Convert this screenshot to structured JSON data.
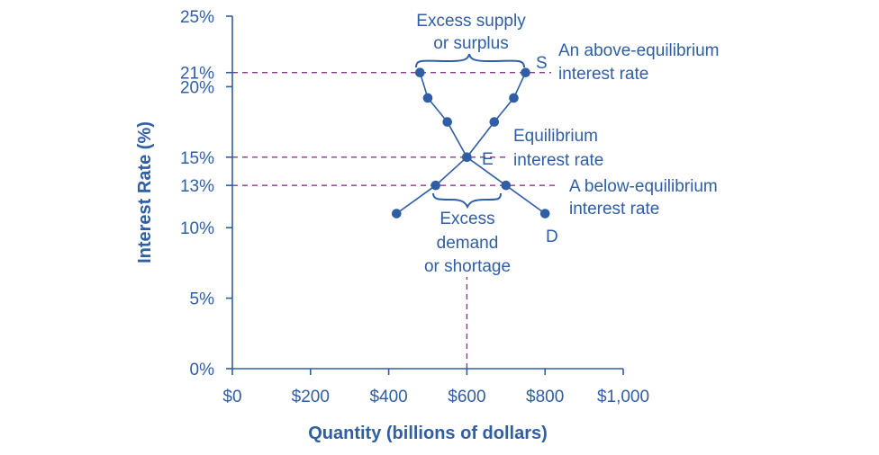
{
  "chart_data": {
    "type": "line",
    "xlabel": "Quantity (billions of dollars)",
    "ylabel": "Interest Rate (%)",
    "xlim": [
      0,
      1000
    ],
    "ylim": [
      0,
      25
    ],
    "x_ticks": [
      0,
      200,
      400,
      600,
      800,
      1000
    ],
    "x_tick_labels": [
      "$0",
      "$200",
      "$400",
      "$600",
      "$800",
      "$1,000"
    ],
    "y_ticks": [
      0,
      5,
      10,
      13,
      15,
      20,
      21,
      25
    ],
    "y_tick_labels": [
      "0%",
      "5%",
      "10%",
      "13%",
      "15%",
      "20%",
      "21%",
      "25%"
    ],
    "grid": false,
    "series": [
      {
        "name": "S",
        "x": [
          420,
          520,
          600,
          670,
          720,
          750
        ],
        "y": [
          11,
          13,
          15,
          17.5,
          19.2,
          21
        ]
      },
      {
        "name": "D",
        "x": [
          480,
          500,
          550,
          600,
          700,
          800
        ],
        "y": [
          21,
          19.2,
          17.5,
          15,
          13,
          11
        ]
      }
    ],
    "reference_lines": [
      {
        "axis": "y",
        "value": 21
      },
      {
        "axis": "y",
        "value": 15
      },
      {
        "axis": "y",
        "value": 13
      },
      {
        "axis": "x",
        "value": 600
      }
    ],
    "annotations": {
      "equilibrium_point": "E",
      "surplus": [
        "Excess supply",
        "or surplus"
      ],
      "above": [
        "An above-equilibrium",
        "interest rate"
      ],
      "equilibrium": [
        "Equilibrium",
        "interest rate"
      ],
      "below": [
        "A below-equilibrium",
        "interest rate"
      ],
      "shortage": [
        "Excess",
        "demand",
        "or shortage"
      ]
    }
  }
}
